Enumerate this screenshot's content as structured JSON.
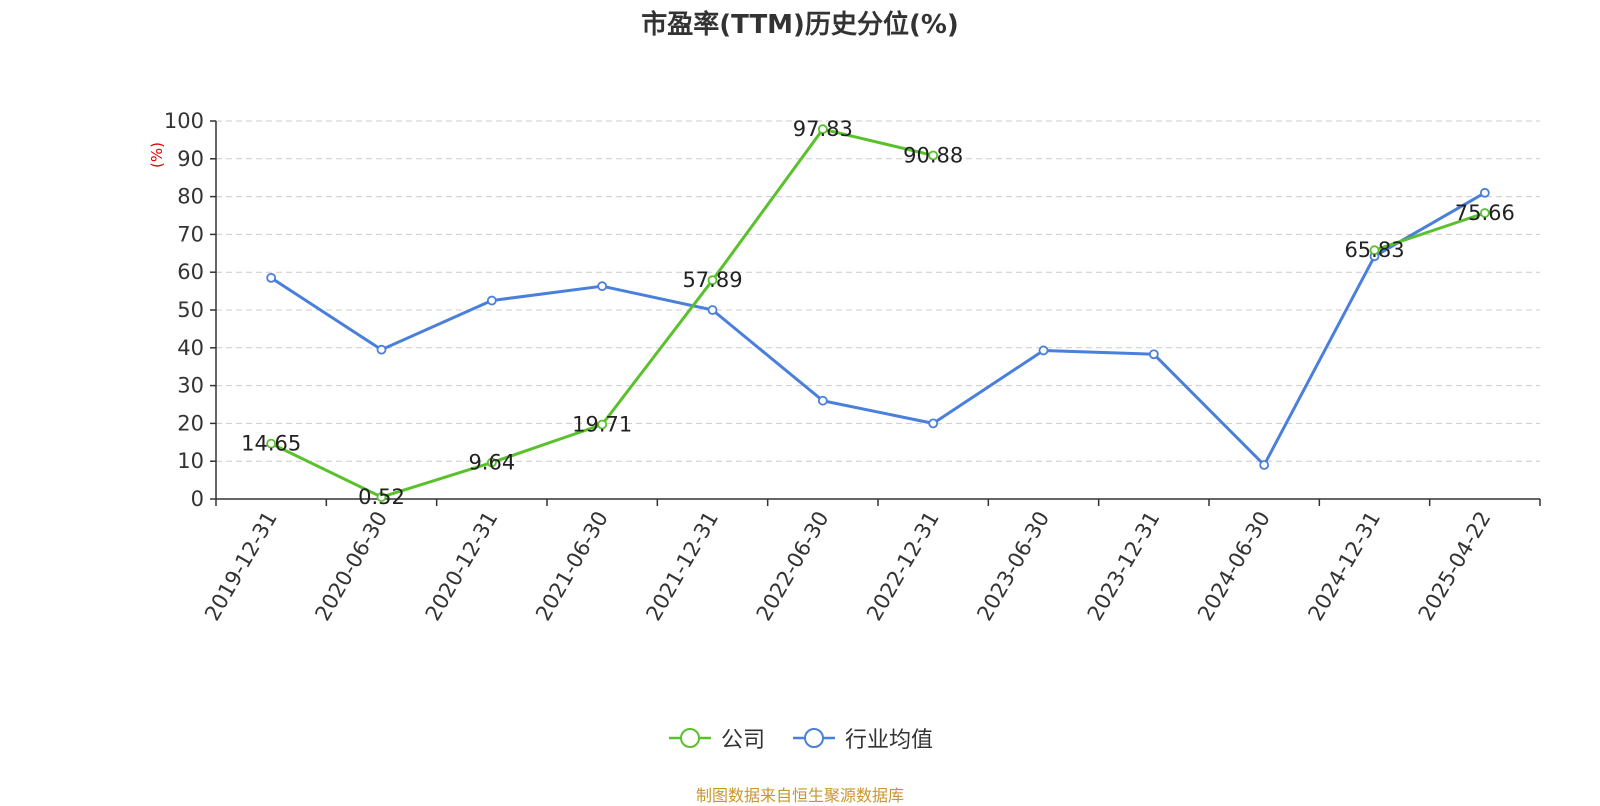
{
  "title": "市盈率(TTM)历史分位(%)",
  "source": "制图数据来自恒生聚源数据库",
  "chart_data": {
    "type": "line",
    "title": "市盈率(TTM)历史分位(%)",
    "xlabel": "",
    "ylabel": "(%)",
    "ylim": [
      0,
      100
    ],
    "yticks": [
      0,
      10,
      20,
      30,
      40,
      50,
      60,
      70,
      80,
      90,
      100
    ],
    "grid": true,
    "legend_position": "bottom",
    "categories": [
      "2019-12-31",
      "2020-06-30",
      "2020-12-31",
      "2021-06-30",
      "2021-12-31",
      "2022-06-30",
      "2022-12-31",
      "2023-06-30",
      "2023-12-31",
      "2024-06-30",
      "2024-12-31",
      "2025-04-22"
    ],
    "series": [
      {
        "name": "公司",
        "color": "#5ac12d",
        "values": [
          14.65,
          0.52,
          9.64,
          19.71,
          57.89,
          97.83,
          90.88,
          null,
          null,
          null,
          65.83,
          75.66
        ],
        "labels": [
          "14.65",
          "0.52",
          "9.64",
          "19.71",
          "57.89",
          "97.83",
          "90.88",
          null,
          null,
          null,
          "65.83",
          "75.66"
        ]
      },
      {
        "name": "行业均值",
        "color": "#4a7fdb",
        "values": [
          58.5,
          39.5,
          52.5,
          56.3,
          50.0,
          26.0,
          20.0,
          39.3,
          38.3,
          9.0,
          64.2,
          81.0
        ]
      }
    ]
  }
}
